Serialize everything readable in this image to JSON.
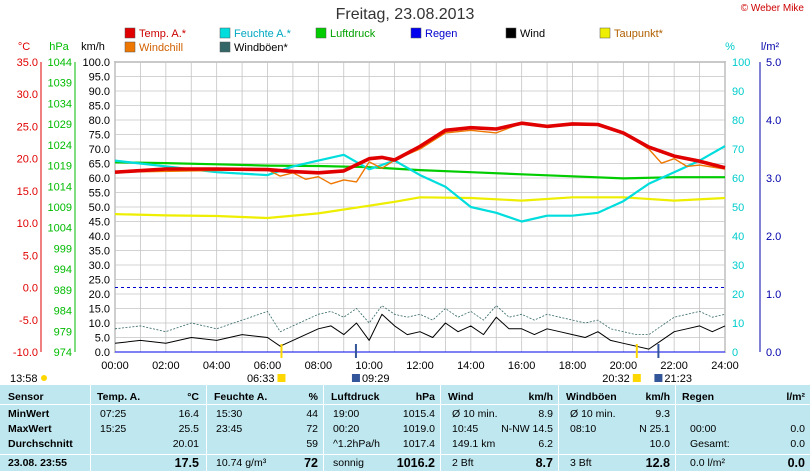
{
  "title": "Freitag, 23.08.2013",
  "brand": "© Weber Mike",
  "chart_data": {
    "type": "line",
    "x_ticks": [
      "00:00",
      "02:00",
      "04:00",
      "06:00",
      "08:00",
      "10:00",
      "12:00",
      "14:00",
      "16:00",
      "18:00",
      "20:00",
      "22:00",
      "24:00"
    ],
    "axes": {
      "temp": {
        "label": "°C",
        "ticks": [
          "35.0",
          "30.0",
          "25.0",
          "20.0",
          "15.0",
          "10.0",
          "5.0",
          "0.0",
          "-5.0",
          "-10.0"
        ],
        "color": "#e00000"
      },
      "pressure": {
        "label": "hPa",
        "ticks": [
          "1044",
          "1039",
          "1034",
          "1029",
          "1024",
          "1019",
          "1014",
          "1009",
          "1004",
          "999",
          "994",
          "989",
          "984",
          "979",
          "974"
        ],
        "color": "#00bb00"
      },
      "wind": {
        "label": "km/h",
        "ticks": [
          "100.0",
          "95.0",
          "90.0",
          "85.0",
          "80.0",
          "75.0",
          "70.0",
          "65.0",
          "60.0",
          "55.0",
          "50.0",
          "45.0",
          "40.0",
          "35.0",
          "30.0",
          "25.0",
          "20.0",
          "15.0",
          "10.0",
          "5.0",
          "0.0"
        ],
        "color": "#000000"
      },
      "humidity": {
        "label": "%",
        "ticks": [
          "100",
          "90",
          "80",
          "70",
          "60",
          "50",
          "40",
          "30",
          "20",
          "10",
          "0"
        ],
        "color": "#00cccc"
      },
      "rain": {
        "label": "l/m²",
        "ticks": [
          "5.0",
          "4.0",
          "3.0",
          "2.0",
          "1.0",
          "0.0"
        ],
        "color": "#0000aa"
      }
    },
    "legend": [
      {
        "name": "Temp. A.*",
        "color": "#e00000"
      },
      {
        "name": "Feuchte A.*",
        "color": "#00dddd"
      },
      {
        "name": "Luftdruck",
        "color": "#00cc00"
      },
      {
        "name": "Regen",
        "color": "#0000ee"
      },
      {
        "name": "Wind",
        "color": "#000000"
      },
      {
        "name": "Taupunkt*",
        "color": "#eeee00"
      },
      {
        "name": "Windchill",
        "color": "#ee7700"
      },
      {
        "name": "Windböen*",
        "color": "#336666"
      }
    ],
    "series": [
      {
        "name": "Temp. A.*",
        "unit": "°C",
        "x": [
          0,
          2,
          4,
          6,
          7,
          8,
          9,
          10,
          10.5,
          11,
          12,
          13,
          14,
          15,
          16,
          17,
          18,
          19,
          20,
          21,
          22,
          23,
          24
        ],
        "y": [
          17.9,
          18.4,
          18.4,
          18.3,
          18.0,
          17.8,
          18.1,
          20.0,
          20.2,
          19.8,
          21.9,
          24.4,
          24.8,
          24.6,
          25.5,
          25.0,
          25.4,
          25.3,
          24.0,
          21.8,
          20.4,
          19.6,
          18.6
        ]
      },
      {
        "name": "Feuchte A.*",
        "unit": "%",
        "x": [
          0,
          2,
          4,
          6,
          7,
          8,
          9,
          10,
          11,
          12,
          13,
          14,
          15,
          16,
          17,
          18,
          19,
          20,
          21,
          22,
          23,
          24
        ],
        "y": [
          66,
          64,
          62,
          61,
          64,
          66,
          68,
          63,
          66,
          61,
          57,
          50,
          48,
          45,
          47,
          47,
          48,
          52,
          58,
          62,
          66,
          71
        ]
      },
      {
        "name": "Luftdruck",
        "unit": "hPa",
        "x": [
          0,
          2,
          4,
          6,
          8,
          10,
          12,
          14,
          16,
          18,
          20,
          22,
          24
        ],
        "y": [
          1019.8,
          1019.6,
          1019.3,
          1019.0,
          1018.9,
          1018.6,
          1017.9,
          1017.4,
          1016.9,
          1016.4,
          1015.9,
          1016.2,
          1016.2
        ]
      },
      {
        "name": "Taupunkt*",
        "unit": "°C",
        "x": [
          0,
          2,
          4,
          6,
          8,
          10,
          11,
          12,
          14,
          16,
          18,
          20,
          22,
          24
        ],
        "y": [
          11.4,
          11.2,
          11.1,
          10.8,
          11.5,
          12.7,
          13.3,
          14.0,
          13.9,
          13.5,
          14.0,
          14.0,
          13.5,
          13.9
        ]
      },
      {
        "name": "Regen",
        "unit": "l/m²",
        "x": [
          0,
          24
        ],
        "y": [
          0.0,
          0.0
        ]
      },
      {
        "name": "Wind",
        "unit": "km/h",
        "x": [
          0,
          1,
          2,
          3,
          4,
          5,
          6,
          6.5,
          7,
          8,
          8.5,
          9,
          9.5,
          10,
          10.5,
          11,
          11.5,
          12,
          12.5,
          13,
          13.5,
          14,
          14.5,
          15,
          15.5,
          16,
          16.5,
          17,
          17.5,
          18,
          18.5,
          19,
          19.5,
          20,
          20.5,
          21,
          21.5,
          22,
          22.5,
          23,
          23.5,
          24
        ],
        "y": [
          3,
          4,
          3,
          5,
          4,
          6,
          5,
          2,
          4,
          8,
          9,
          6,
          10,
          4,
          13,
          9,
          6,
          7,
          5,
          10,
          7,
          9,
          6,
          12,
          8,
          8,
          6,
          8,
          7,
          6,
          5,
          7,
          4,
          3,
          2,
          1,
          4,
          7,
          8,
          9,
          7,
          9
        ]
      },
      {
        "name": "Windböen*",
        "unit": "km/h",
        "x": [
          0,
          1,
          2,
          3,
          4,
          5,
          6,
          6.5,
          7,
          8,
          8.5,
          9,
          9.5,
          10,
          10.5,
          11,
          11.5,
          12,
          12.5,
          13,
          13.5,
          14,
          14.5,
          15,
          15.5,
          16,
          16.5,
          17,
          17.5,
          18,
          18.5,
          19,
          19.5,
          20,
          20.5,
          21,
          21.5,
          22,
          22.5,
          23,
          23.5,
          24
        ],
        "y": [
          8,
          9,
          7,
          10,
          8,
          11,
          14,
          7,
          9,
          13,
          14,
          12,
          15,
          10,
          16,
          13,
          12,
          13,
          11,
          15,
          12,
          14,
          11,
          16,
          12,
          13,
          11,
          13,
          12,
          11,
          10,
          11,
          8,
          7,
          6,
          6,
          9,
          12,
          13,
          14,
          12,
          13
        ]
      },
      {
        "name": "Windchill",
        "unit": "°C",
        "x": [
          0,
          6,
          6.5,
          7,
          7.5,
          8,
          8.5,
          9,
          9.5,
          10,
          10.5,
          11,
          12,
          13,
          14,
          15,
          16,
          17,
          18,
          19,
          20,
          21,
          21.5,
          22,
          22.5,
          23,
          24
        ],
        "y": [
          17.9,
          18.3,
          17.3,
          17.8,
          16.8,
          17.2,
          16.1,
          16.7,
          16.4,
          19.5,
          18.5,
          19.8,
          21.5,
          24.0,
          24.4,
          24.0,
          25.5,
          25.0,
          25.4,
          25.3,
          24.0,
          21.5,
          19.3,
          20.0,
          18.8,
          19.0,
          18.4
        ]
      }
    ],
    "events": [
      {
        "label": "06:33",
        "type": "sunrise"
      },
      {
        "label": "09:29",
        "type": "moonset"
      },
      {
        "label": "20:32",
        "type": "sunset"
      },
      {
        "label": "21:23",
        "type": "moonrise"
      }
    ],
    "current_time": "13:58"
  },
  "table": {
    "header": [
      "Sensor",
      "Temp. A.",
      "°C",
      "Feuchte A.",
      "%",
      "Luftdruck",
      "hPa",
      "Wind",
      "km/h",
      "Windböen",
      "km/h",
      "Regen",
      "l/m²"
    ],
    "rows": [
      {
        "label": "MinWert",
        "cells": [
          "07:25",
          "16.4",
          "15:30",
          "44",
          "19:00",
          "1015.4",
          "Ø 10 min.",
          "8.9",
          "Ø 10 min.",
          "9.3",
          "",
          ""
        ]
      },
      {
        "label": "MaxWert",
        "cells": [
          "15:25",
          "25.5",
          "23:45",
          "72",
          "00:20",
          "1019.0",
          "10:45",
          "N-NW 14.5",
          "08:10",
          "N 25.1",
          "00:00",
          "0.0"
        ]
      },
      {
        "label": "Durchschnitt",
        "cells": [
          "",
          "20.01",
          "",
          "59",
          "^1.2hPa/h",
          "1017.4",
          "149.1 km",
          "6.2",
          "",
          "10.0",
          "Gesamt:",
          "0.0"
        ]
      },
      {
        "label": "23.08.  23:55",
        "cells": [
          "",
          "17.5",
          "10.74 g/m³",
          "72",
          "sonnig",
          "1016.2",
          "2 Bft",
          "8.7",
          "3 Bft",
          "12.8",
          "0.0 l/m²",
          "0.0"
        ]
      }
    ]
  }
}
